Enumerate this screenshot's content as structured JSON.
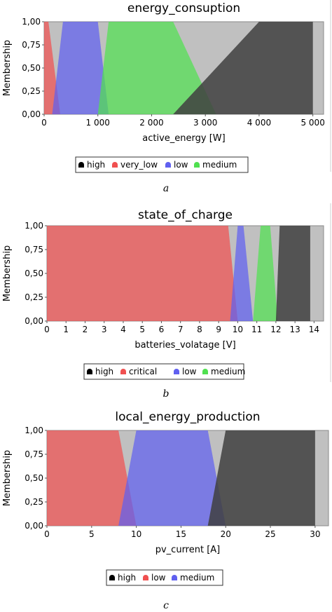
{
  "chart_data": [
    {
      "type": "area",
      "title": "energy_consuption",
      "xlabel": "active_energy [W]",
      "ylabel": "Membership",
      "caption": "a",
      "xlim": [
        0,
        5200
      ],
      "ylim": [
        0,
        1
      ],
      "xticks": [
        0,
        1000,
        2000,
        3000,
        4000,
        5000
      ],
      "xtick_labels": [
        "0",
        "1 000",
        "2 000",
        "3 000",
        "4 000",
        "5 000"
      ],
      "yticks": [
        0,
        0.25,
        0.5,
        0.75,
        1
      ],
      "ytick_labels": [
        "0,00",
        "0,25",
        "0,50",
        "0,75",
        "1,00"
      ],
      "legend_order": [
        "high",
        "very_low",
        "low",
        "medium"
      ],
      "series": [
        {
          "name": "very_low",
          "color": "#f05050",
          "points": [
            [
              0,
              0
            ],
            [
              0,
              1
            ],
            [
              80,
              1
            ],
            [
              300,
              0
            ]
          ]
        },
        {
          "name": "low",
          "color": "#6060f0",
          "points": [
            [
              150,
              0
            ],
            [
              350,
              1
            ],
            [
              1000,
              1
            ],
            [
              1200,
              0
            ]
          ]
        },
        {
          "name": "medium",
          "color": "#50e050",
          "points": [
            [
              1000,
              0
            ],
            [
              1200,
              1
            ],
            [
              2400,
              1
            ],
            [
              3200,
              0
            ]
          ]
        },
        {
          "name": "high",
          "color": "#404040",
          "points": [
            [
              2400,
              0
            ],
            [
              4000,
              1
            ],
            [
              5000,
              1
            ],
            [
              5000,
              0
            ]
          ]
        }
      ]
    },
    {
      "type": "area",
      "title": "state_of_charge",
      "xlabel": "batteries_volatage [V]",
      "ylabel": "Membership",
      "caption": "b",
      "xlim": [
        0,
        14.5
      ],
      "ylim": [
        0,
        1
      ],
      "xticks": [
        0,
        1,
        2,
        3,
        4,
        5,
        6,
        7,
        8,
        9,
        10,
        11,
        12,
        13,
        14
      ],
      "xtick_labels": [
        "0",
        "1",
        "2",
        "3",
        "4",
        "5",
        "6",
        "7",
        "8",
        "9",
        "10",
        "11",
        "12",
        "13",
        "14"
      ],
      "yticks": [
        0,
        0.25,
        0.5,
        0.75,
        1
      ],
      "ytick_labels": [
        "0,00",
        "0,25",
        "0,50",
        "0,75",
        "1,00"
      ],
      "legend_order": [
        "high",
        "critical",
        "low",
        "medium"
      ],
      "series": [
        {
          "name": "critical",
          "color": "#f05050",
          "points": [
            [
              0,
              0
            ],
            [
              0,
              1
            ],
            [
              9.5,
              1
            ],
            [
              10,
              0
            ]
          ]
        },
        {
          "name": "low",
          "color": "#6060f0",
          "points": [
            [
              9.6,
              0
            ],
            [
              10,
              1
            ],
            [
              10.3,
              1
            ],
            [
              10.8,
              0
            ]
          ]
        },
        {
          "name": "medium",
          "color": "#50e050",
          "points": [
            [
              10.8,
              0
            ],
            [
              11.2,
              1
            ],
            [
              11.7,
              1
            ],
            [
              12.1,
              0
            ]
          ]
        },
        {
          "name": "high",
          "color": "#404040",
          "points": [
            [
              12,
              0
            ],
            [
              12.2,
              1
            ],
            [
              13.8,
              1
            ],
            [
              13.8,
              0
            ]
          ]
        }
      ]
    },
    {
      "type": "area",
      "title": "local_energy_production",
      "xlabel": "pv_current [A]",
      "ylabel": "Membership",
      "caption": "c",
      "xlim": [
        0,
        31.5
      ],
      "ylim": [
        0,
        1
      ],
      "xticks": [
        0,
        5,
        10,
        15,
        20,
        25,
        30
      ],
      "xtick_labels": [
        "0",
        "5",
        "10",
        "15",
        "20",
        "25",
        "30"
      ],
      "yticks": [
        0,
        0.25,
        0.5,
        0.75,
        1
      ],
      "ytick_labels": [
        "0,00",
        "0,25",
        "0,50",
        "0,75",
        "1,00"
      ],
      "legend_order": [
        "high",
        "low",
        "medium"
      ],
      "series": [
        {
          "name": "low",
          "color": "#f05050",
          "points": [
            [
              0,
              0
            ],
            [
              0,
              1
            ],
            [
              8,
              1
            ],
            [
              10,
              0
            ]
          ]
        },
        {
          "name": "medium",
          "color": "#6060f0",
          "points": [
            [
              8,
              0
            ],
            [
              10,
              1
            ],
            [
              18,
              1
            ],
            [
              20,
              0
            ]
          ]
        },
        {
          "name": "high",
          "color": "#404040",
          "points": [
            [
              18,
              0
            ],
            [
              20,
              1
            ],
            [
              30,
              1
            ],
            [
              30,
              0
            ]
          ]
        }
      ]
    }
  ]
}
